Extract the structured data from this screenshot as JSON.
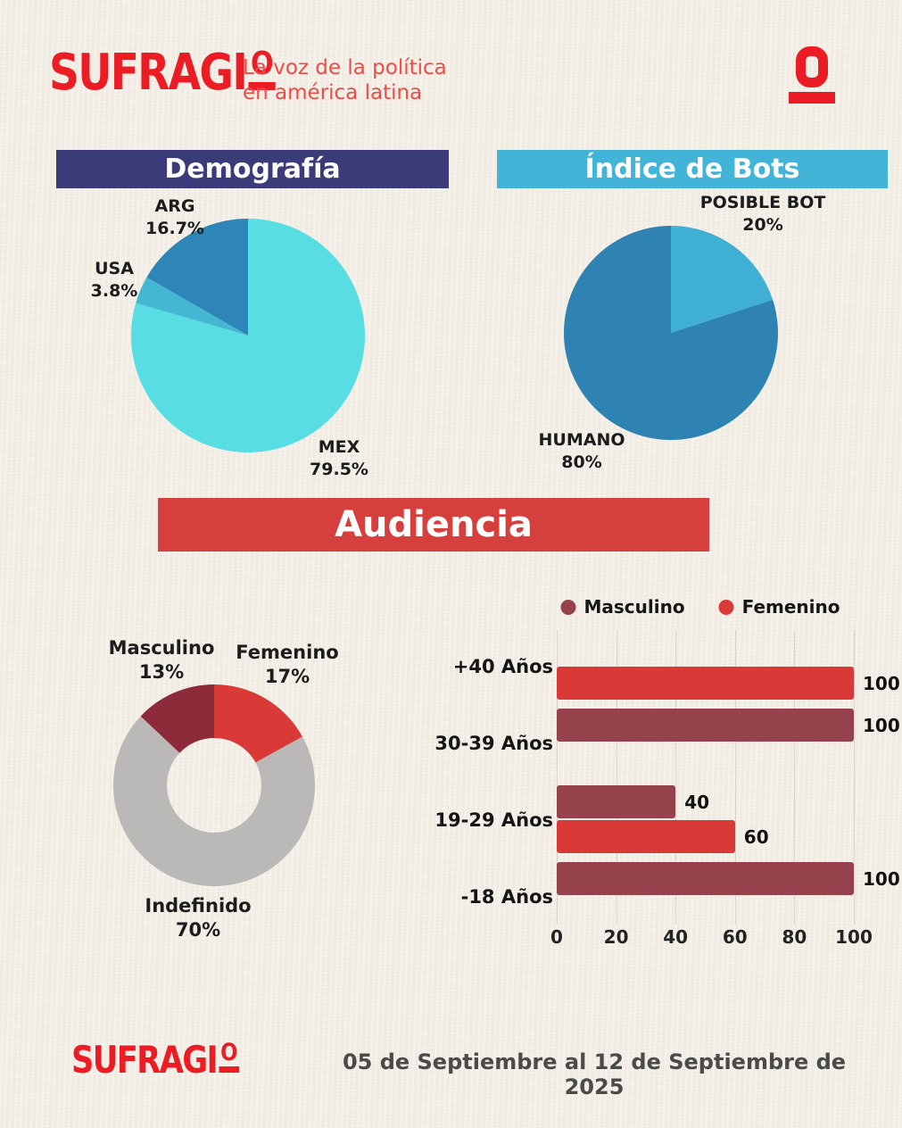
{
  "brand": {
    "logo_main": "SUFRAGI",
    "logo_o": "O",
    "tagline_line1": "La voz de la política",
    "tagline_line2": "en américa latina"
  },
  "sections": {
    "demografia": {
      "title": "Demografía",
      "header_bg": "#3b3b7a"
    },
    "bots": {
      "title": "Índice de Bots",
      "header_bg": "#41b4d8"
    },
    "audiencia": {
      "title": "Audiencia",
      "header_bg": "#d6403c"
    }
  },
  "colors": {
    "brand_red": "#ec1c24",
    "paper": "#f2eee5",
    "navy": "#3b3b7a",
    "light_blue": "#41b4d8",
    "banner_red": "#d6403c"
  },
  "chart_data": [
    {
      "id": "demografia_pie",
      "type": "pie",
      "title": "Demografía",
      "start_angle_deg": 0,
      "clockwise": true,
      "slices": [
        {
          "label": "MEX",
          "pct_label": "79.5%",
          "value": 79.5,
          "color": "#58dde3"
        },
        {
          "label": "USA",
          "pct_label": "3.8%",
          "value": 3.8,
          "color": "#44b8d3"
        },
        {
          "label": "ARG",
          "pct_label": "16.7%",
          "value": 16.7,
          "color": "#2e86b8"
        }
      ]
    },
    {
      "id": "bots_pie",
      "type": "pie",
      "title": "Índice de Bots",
      "start_angle_deg": 0,
      "clockwise": true,
      "slices": [
        {
          "label": "POSIBLE BOT",
          "pct_label": "20%",
          "value": 20,
          "color": "#3fb0d3"
        },
        {
          "label": "HUMANO",
          "pct_label": "80%",
          "value": 80,
          "color": "#2e83b3"
        }
      ]
    },
    {
      "id": "gender_donut",
      "type": "pie",
      "donut": true,
      "title": "Audiencia",
      "start_angle_deg": 0,
      "clockwise": true,
      "slices": [
        {
          "label": "Femenino",
          "pct_label": "17%",
          "value": 17,
          "color": "#d93a38"
        },
        {
          "label": "Indefinido",
          "pct_label": "70%",
          "value": 70,
          "color": "#bbb9b7"
        },
        {
          "label": "Masculino",
          "pct_label": "13%",
          "value": 13,
          "color": "#8e2b3a"
        }
      ]
    },
    {
      "id": "age_bars",
      "type": "bar",
      "orientation": "horizontal",
      "categories": [
        "+40 Años",
        "30-39 Años",
        "19-29 Años",
        "-18 Años"
      ],
      "series": [
        {
          "name": "Masculino",
          "color": "#96424c",
          "values": [
            0,
            100,
            40,
            100
          ]
        },
        {
          "name": "Femenino",
          "color": "#d93a38",
          "values": [
            100,
            0,
            60,
            0
          ]
        }
      ],
      "xticks": [
        0,
        20,
        40,
        60,
        80,
        100
      ],
      "xlim": [
        0,
        100
      ],
      "grid": true,
      "legend_position": "top"
    }
  ],
  "footer": {
    "logo_main": "SUFRAGI",
    "logo_o": "O",
    "date_range": "05 de Septiembre al 12 de Septiembre de 2025"
  }
}
